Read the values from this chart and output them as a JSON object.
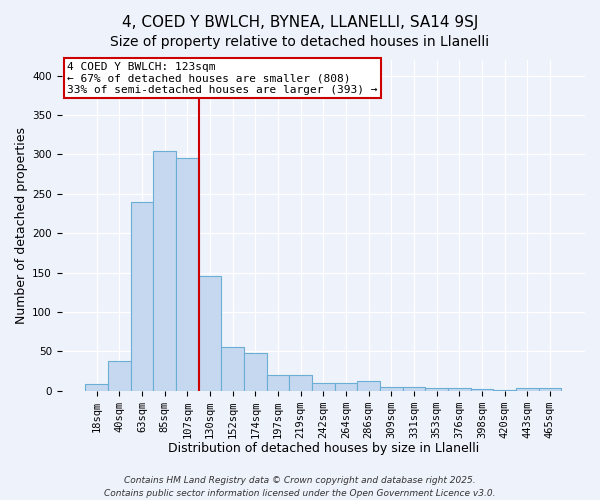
{
  "title": "4, COED Y BWLCH, BYNEA, LLANELLI, SA14 9SJ",
  "subtitle": "Size of property relative to detached houses in Llanelli",
  "xlabel": "Distribution of detached houses by size in Llanelli",
  "ylabel": "Number of detached properties",
  "bar_labels": [
    "18sqm",
    "40sqm",
    "63sqm",
    "85sqm",
    "107sqm",
    "130sqm",
    "152sqm",
    "174sqm",
    "197sqm",
    "219sqm",
    "242sqm",
    "264sqm",
    "286sqm",
    "309sqm",
    "331sqm",
    "353sqm",
    "376sqm",
    "398sqm",
    "420sqm",
    "443sqm",
    "465sqm"
  ],
  "bar_values": [
    8,
    38,
    240,
    305,
    295,
    145,
    55,
    48,
    20,
    20,
    10,
    10,
    12,
    5,
    4,
    3,
    3,
    2,
    1,
    3,
    3
  ],
  "bar_color": "#c5d8f0",
  "bar_edge_color": "#6aaed6",
  "vline_color": "#cc0000",
  "annotation_text": "4 COED Y BWLCH: 123sqm\n← 67% of detached houses are smaller (808)\n33% of semi-detached houses are larger (393) →",
  "annotation_box_color": "#ffffff",
  "annotation_box_edge": "#cc0000",
  "ylim": [
    0,
    420
  ],
  "yticks": [
    0,
    50,
    100,
    150,
    200,
    250,
    300,
    350,
    400
  ],
  "bg_color": "#eef2fb",
  "grid_color": "#ffffff",
  "footer1": "Contains HM Land Registry data © Crown copyright and database right 2025.",
  "footer2": "Contains public sector information licensed under the Open Government Licence v3.0.",
  "title_fontsize": 11,
  "axis_label_fontsize": 9,
  "tick_fontsize": 7.5,
  "annot_fontsize": 8,
  "footer_fontsize": 6.5
}
